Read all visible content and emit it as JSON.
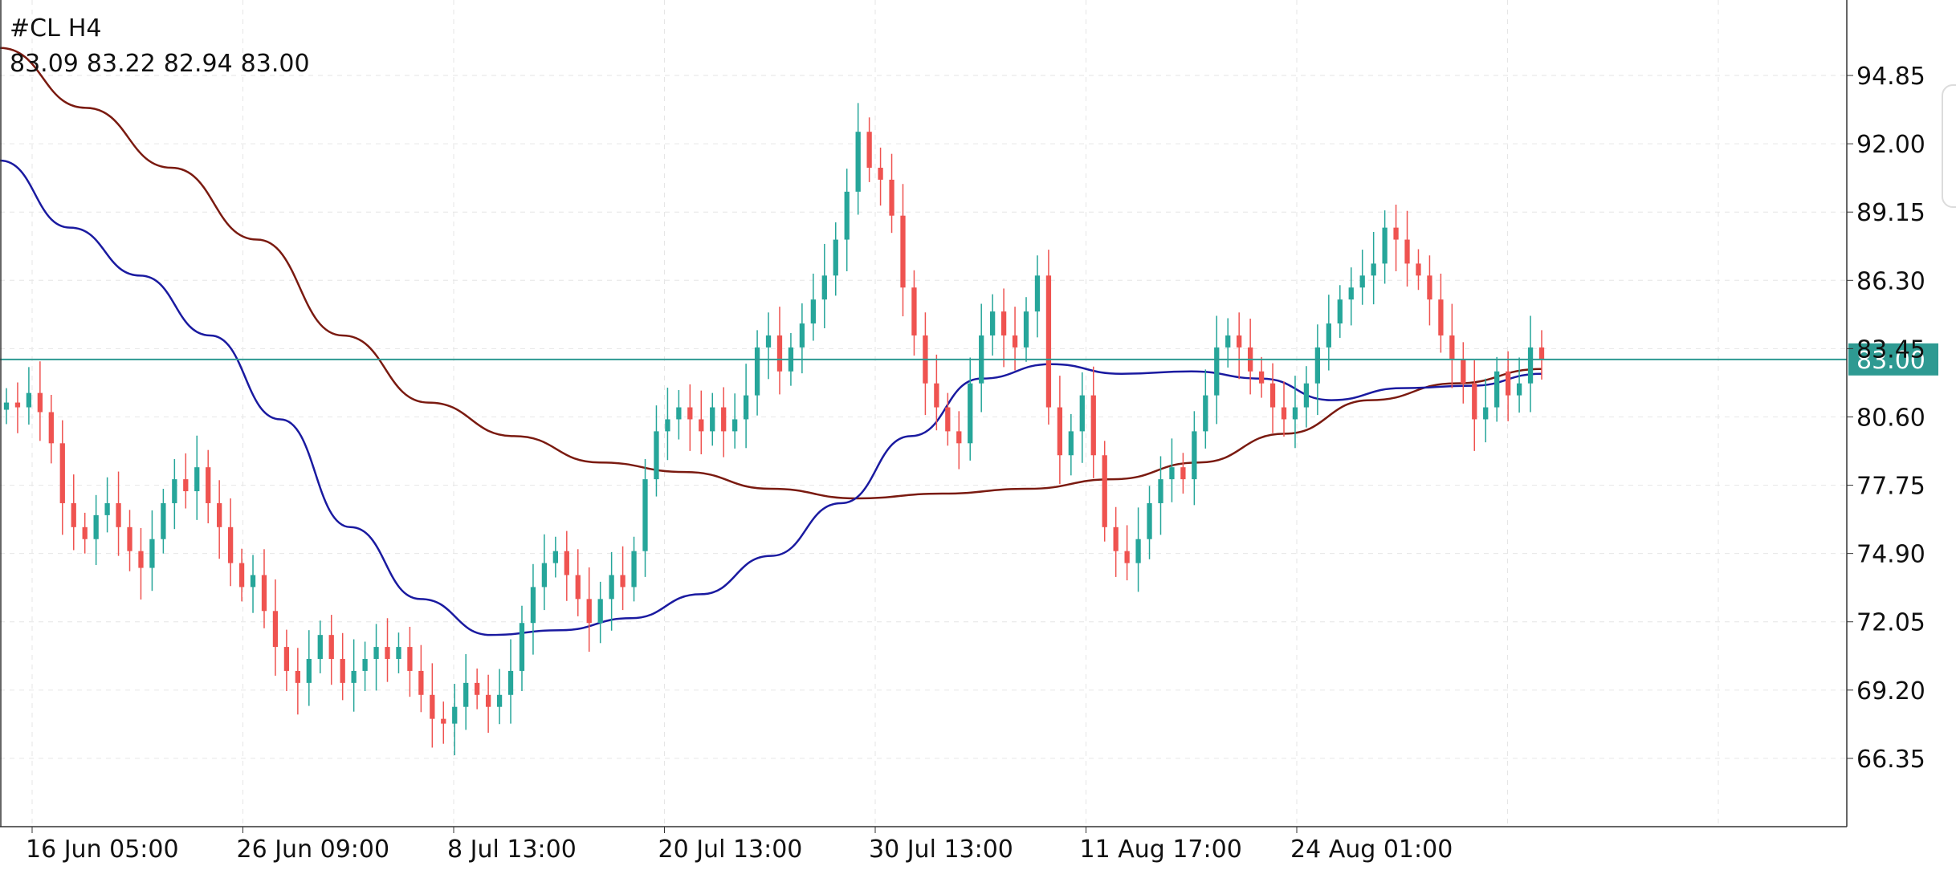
{
  "chart_data": {
    "type": "candlestick",
    "symbol": "#CL",
    "timeframe": "H4",
    "ohlc": {
      "open": "83.09",
      "high": "83.22",
      "low": "82.94",
      "close": "83.00"
    },
    "current_price": 83.0,
    "current_price_label": "83.00",
    "ylim": [
      63.5,
      98.0
    ],
    "y_ticks": [
      94.85,
      92.0,
      89.15,
      86.3,
      83.45,
      80.6,
      77.75,
      74.9,
      72.05,
      69.2,
      66.35
    ],
    "y_tick_labels": [
      "94.85",
      "92.00",
      "89.15",
      "86.30",
      "83.45",
      "80.60",
      "77.75",
      "74.90",
      "72.05",
      "69.20",
      "66.35"
    ],
    "x_ticks": [
      "16 Jun 05:00",
      "26 Jun 09:00",
      "8 Jul 13:00",
      "20 Jul 13:00",
      "30 Jul 13:00",
      "11 Aug 17:00",
      "24 Aug 01:00"
    ],
    "grid": true,
    "colors": {
      "up": "#26a69a",
      "down": "#ef5350",
      "ma_fast": "#1a1aa0",
      "ma_slow": "#7a1a10",
      "price_line": "#2e9a92",
      "grid": "#e6e6e6"
    },
    "candle_closes": [
      81.2,
      81.0,
      81.6,
      80.8,
      79.5,
      77.0,
      76.0,
      75.5,
      76.5,
      77.0,
      76.0,
      75.0,
      74.3,
      75.5,
      77.0,
      78.0,
      77.5,
      78.5,
      77.0,
      76.0,
      74.5,
      73.5,
      74.0,
      72.5,
      71.0,
      70.0,
      69.5,
      70.5,
      71.5,
      70.5,
      69.5,
      70.0,
      70.5,
      71.0,
      70.5,
      71.0,
      70.0,
      69.0,
      68.0,
      67.8,
      68.5,
      69.5,
      69.0,
      68.5,
      69.0,
      70.0,
      72.0,
      73.5,
      74.5,
      75.0,
      74.0,
      73.0,
      72.0,
      73.0,
      74.0,
      73.5,
      75.0,
      78.0,
      80.0,
      80.5,
      81.0,
      80.5,
      80.0,
      81.0,
      80.0,
      80.5,
      81.5,
      83.5,
      84.0,
      82.5,
      83.5,
      84.5,
      85.5,
      86.5,
      88.0,
      90.0,
      92.5,
      91.0,
      90.5,
      89.0,
      86.0,
      84.0,
      82.0,
      81.0,
      80.0,
      79.5,
      82.0,
      84.0,
      85.0,
      84.0,
      83.5,
      85.0,
      86.5,
      81.0,
      79.0,
      80.0,
      81.5,
      79.0,
      76.0,
      75.0,
      74.5,
      75.5,
      77.0,
      78.0,
      78.5,
      78.0,
      80.0,
      81.5,
      83.5,
      84.0,
      83.5,
      82.5,
      82.0,
      81.0,
      80.5,
      81.0,
      82.0,
      83.5,
      84.5,
      85.5,
      86.0,
      86.5,
      87.0,
      88.5,
      88.0,
      87.0,
      86.5,
      85.5,
      84.0,
      83.0,
      82.0,
      80.5,
      81.0,
      82.5,
      81.5,
      82.0,
      83.5,
      83.0
    ],
    "ma_fast": [
      91.3,
      88.5,
      86.5,
      84.0,
      80.5,
      76.0,
      73.0,
      71.5,
      71.7,
      72.2,
      73.2,
      74.8,
      77.0,
      79.8,
      82.2,
      82.8,
      82.4,
      82.5,
      82.2,
      81.3,
      81.8,
      81.9,
      82.4
    ],
    "ma_slow": [
      96.0,
      93.5,
      91.0,
      88.0,
      84.0,
      81.2,
      79.8,
      78.7,
      78.3,
      77.6,
      77.2,
      77.4,
      77.6,
      78.0,
      78.7,
      79.9,
      81.3,
      82.0,
      82.6
    ]
  }
}
